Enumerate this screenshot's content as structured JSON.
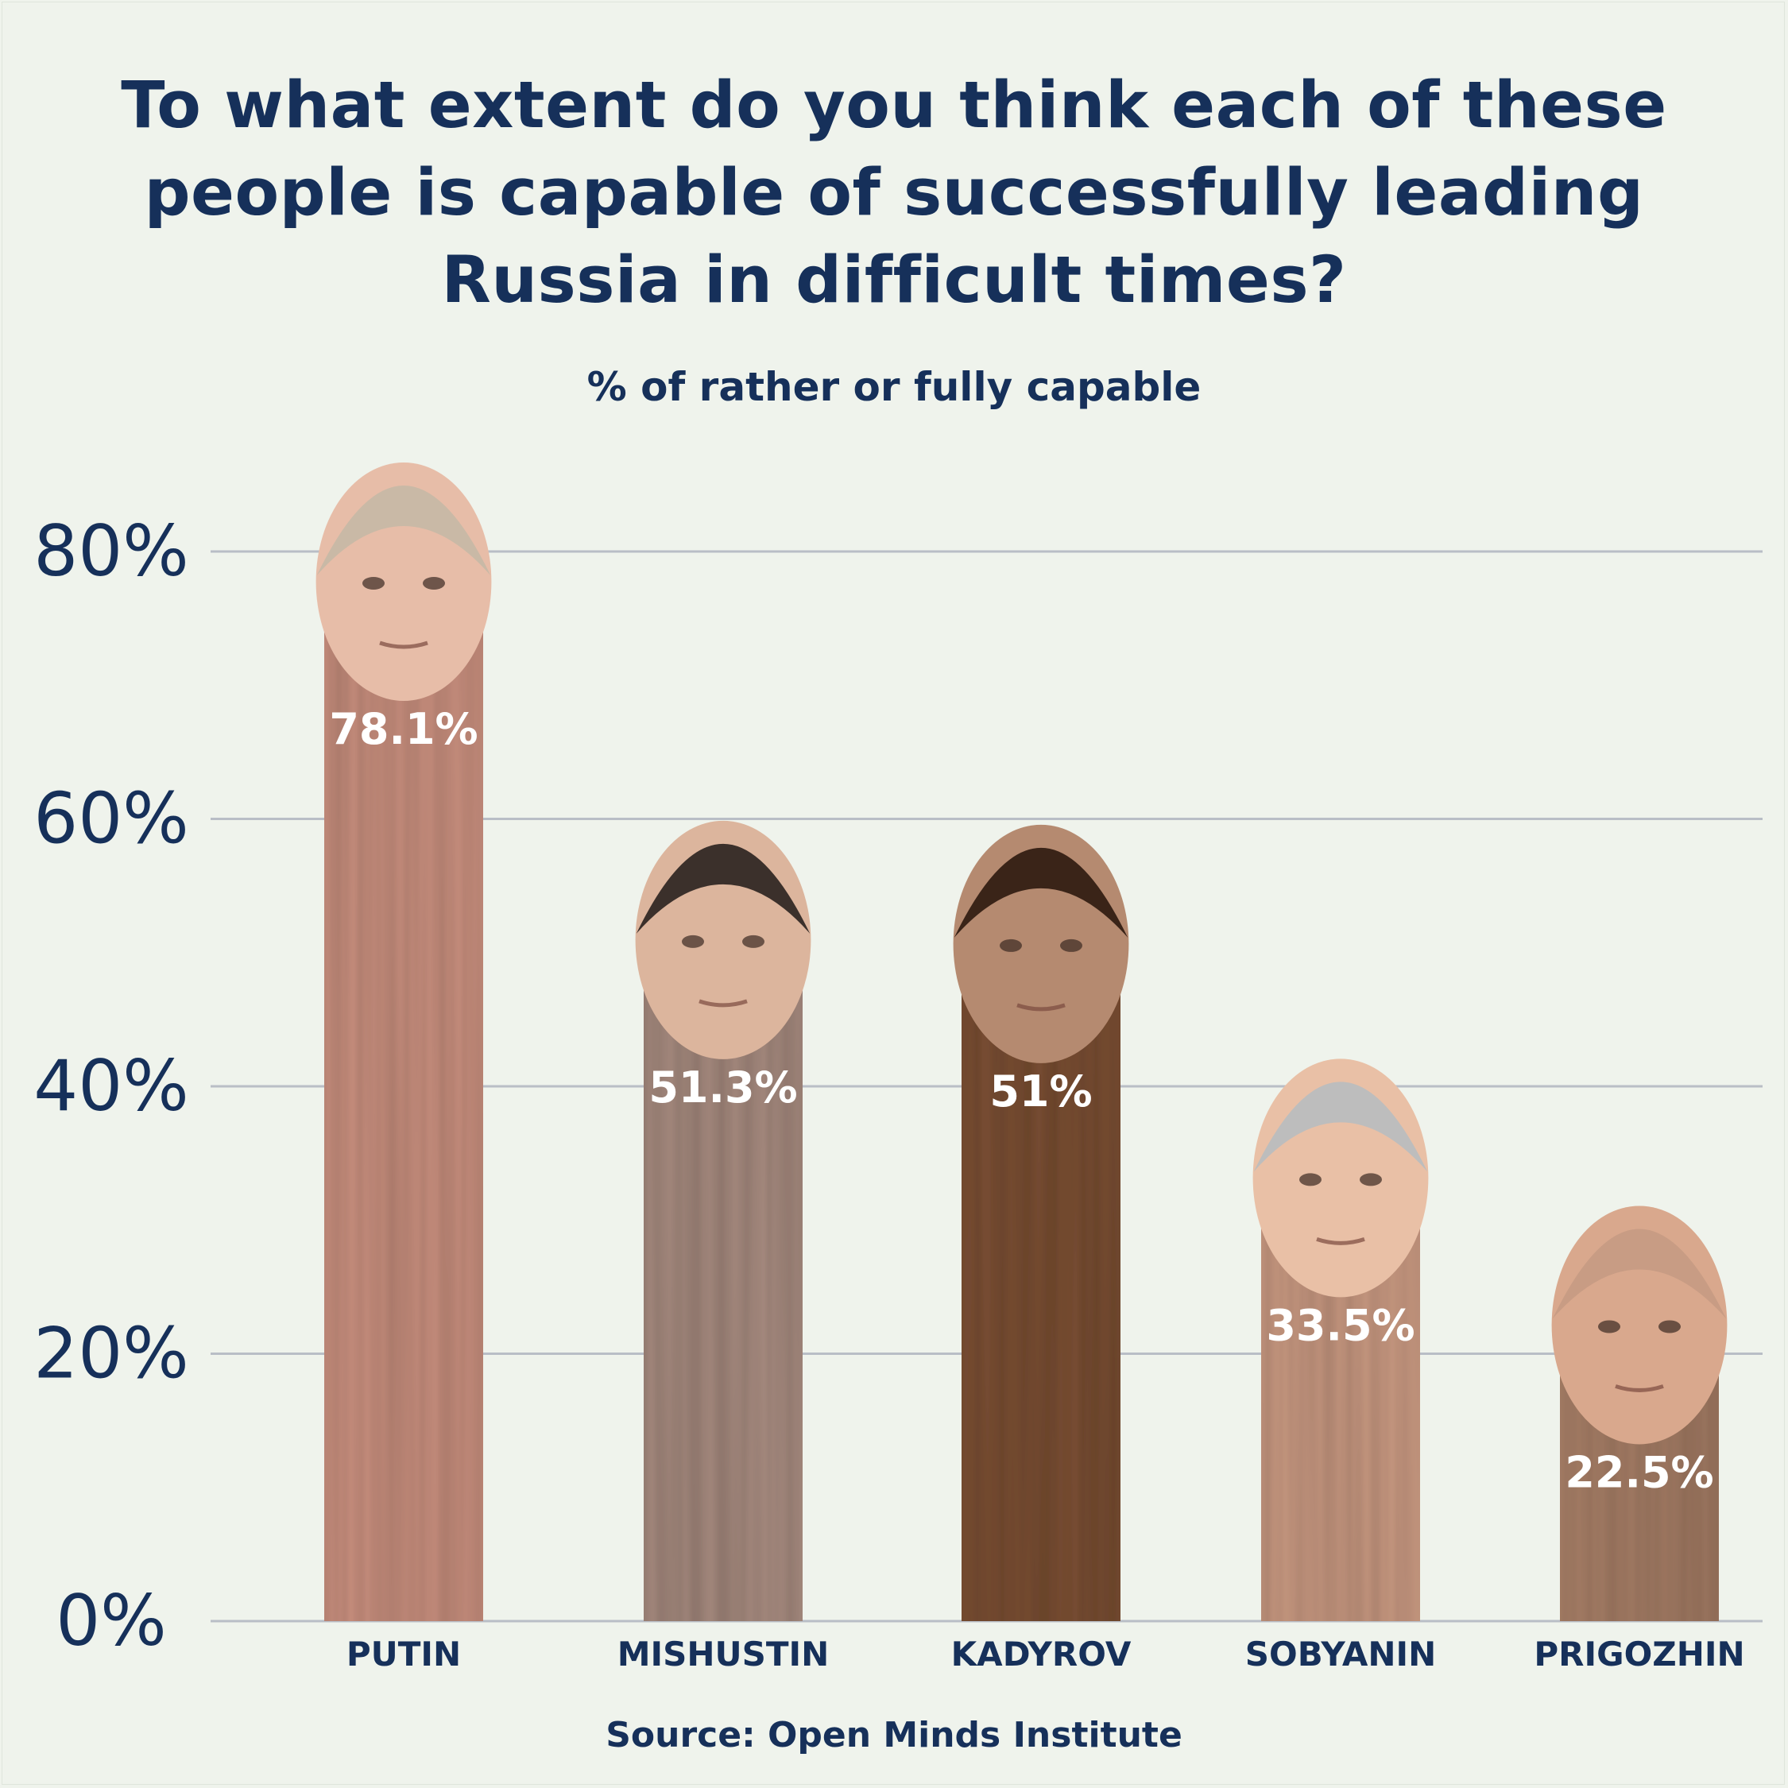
{
  "title": "To what extent do you think each of these people is capable of successfully leading Russia in difficult times?",
  "subtitle": "% of rather or fully capable",
  "source": "Source: Open Minds Institute",
  "colors": {
    "background": "#eff3ec",
    "text": "#16305a",
    "gridline": "#b9bec6"
  },
  "chart_data": {
    "type": "bar",
    "categories": [
      "PUTIN",
      "MISHUSTIN",
      "KADYROV",
      "SOBYANIN",
      "PRIGOZHIN"
    ],
    "values": [
      78.1,
      51.3,
      51,
      33.5,
      22.5
    ],
    "value_labels": [
      "78.1%",
      "51.3%",
      "51%",
      "33.5%",
      "22.5%"
    ],
    "bar_colors": [
      "#c9907f",
      "#a68a7f",
      "#7a4f36",
      "#c99a82",
      "#a67e66"
    ],
    "face_colors": [
      "#e7bda8",
      "#dcb59d",
      "#b58a70",
      "#e9c0a6",
      "#d9a88d"
    ],
    "hair_colors": [
      "#c9b9a6",
      "#3b302b",
      "#3a2418",
      "#bdbdbd",
      "#c89c84"
    ],
    "y_ticks": [
      "0%",
      "20%",
      "40%",
      "60%",
      "80%"
    ],
    "y_tick_values": [
      0,
      20,
      40,
      60,
      80
    ],
    "ylim": [
      0,
      80
    ],
    "grid": true,
    "title": "To what extent do you think each of these people is capable of successfully leading Russia in difficult times?",
    "ylabel": "% of rather or fully capable",
    "xlabel": ""
  }
}
